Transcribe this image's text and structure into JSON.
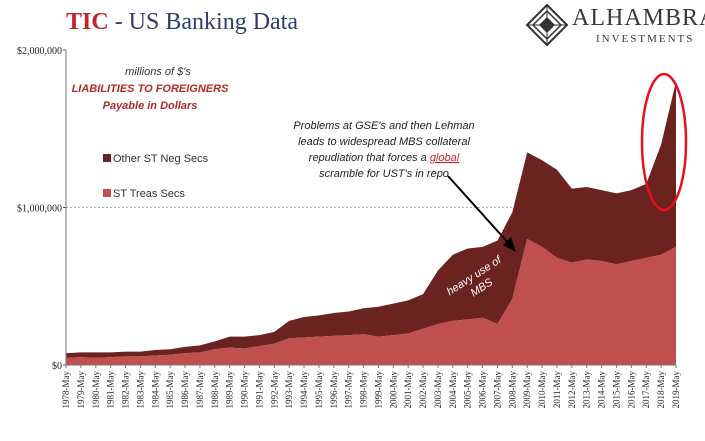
{
  "header": {
    "title_tic": "TIC",
    "title_rest": " - US Banking Data"
  },
  "logo": {
    "name": "ALHAMBRA",
    "sub": "INVESTMENTS",
    "icon": "diamond-emblem-icon"
  },
  "notes": {
    "units": "millions of $'s",
    "liabilities": "LIABILITIES TO FOREIGNERS",
    "payable": "Payable  in Dollars",
    "callout_lines": [
      "Problems at GSE's and then Lehman",
      "leads to widespread MBS collateral",
      "repudiation that forces a ",
      "scramble for UST's in repo"
    ],
    "callout_emphasis": "global",
    "mbs_lines": [
      "heavy use of",
      "MBS"
    ]
  },
  "colors": {
    "st_treas": "#c0504d",
    "other_st": "#6b2320",
    "highlight": "#e8101a",
    "title_red": "#c0272d",
    "title_blue": "#2e3d6b",
    "callout_text": "#222222",
    "note_red": "#b02a2a"
  },
  "chart_data": {
    "type": "area",
    "stacked": true,
    "title": "TIC - US Banking Data",
    "ylabel": "",
    "xlabel": "",
    "ylim": [
      0,
      2000000
    ],
    "yticks": [
      "$0",
      "$1,000,000",
      "$2,000,000"
    ],
    "grid": "dashed at $1,000,000",
    "legend_position": "left",
    "x": [
      "1978-May",
      "1979-May",
      "1980-May",
      "1981-May",
      "1982-May",
      "1983-May",
      "1984-May",
      "1985-May",
      "1986-May",
      "1987-May",
      "1988-May",
      "1989-May",
      "1990-May",
      "1991-May",
      "1992-May",
      "1993-May",
      "1994-May",
      "1995-May",
      "1996-May",
      "1997-May",
      "1998-May",
      "1999-May",
      "2000-May",
      "2001-May",
      "2002-May",
      "2003-May",
      "2004-May",
      "2005-May",
      "2006-May",
      "2007-May",
      "2008-May",
      "2009-May",
      "2010-May",
      "2011-May",
      "2012-May",
      "2013-May",
      "2014-May",
      "2015-May",
      "2016-May",
      "2017-May",
      "2018-May",
      "2019-May"
    ],
    "series": [
      {
        "name": "ST Treas Secs",
        "values": [
          45000,
          50000,
          45000,
          50000,
          55000,
          55000,
          60000,
          65000,
          75000,
          80000,
          100000,
          110000,
          105000,
          120000,
          135000,
          170000,
          175000,
          180000,
          185000,
          190000,
          195000,
          180000,
          190000,
          200000,
          230000,
          260000,
          280000,
          290000,
          300000,
          260000,
          420000,
          800000,
          750000,
          680000,
          650000,
          670000,
          660000,
          640000,
          660000,
          680000,
          700000,
          750000
        ]
      },
      {
        "name": "Other ST Neg Secs",
        "values": [
          30000,
          30000,
          35000,
          30000,
          30000,
          30000,
          35000,
          35000,
          40000,
          45000,
          50000,
          70000,
          75000,
          70000,
          75000,
          110000,
          130000,
          135000,
          145000,
          150000,
          165000,
          190000,
          200000,
          210000,
          220000,
          340000,
          420000,
          450000,
          450000,
          530000,
          550000,
          550000,
          550000,
          560000,
          470000,
          460000,
          450000,
          450000,
          450000,
          470000,
          700000,
          1050000
        ]
      }
    ]
  }
}
